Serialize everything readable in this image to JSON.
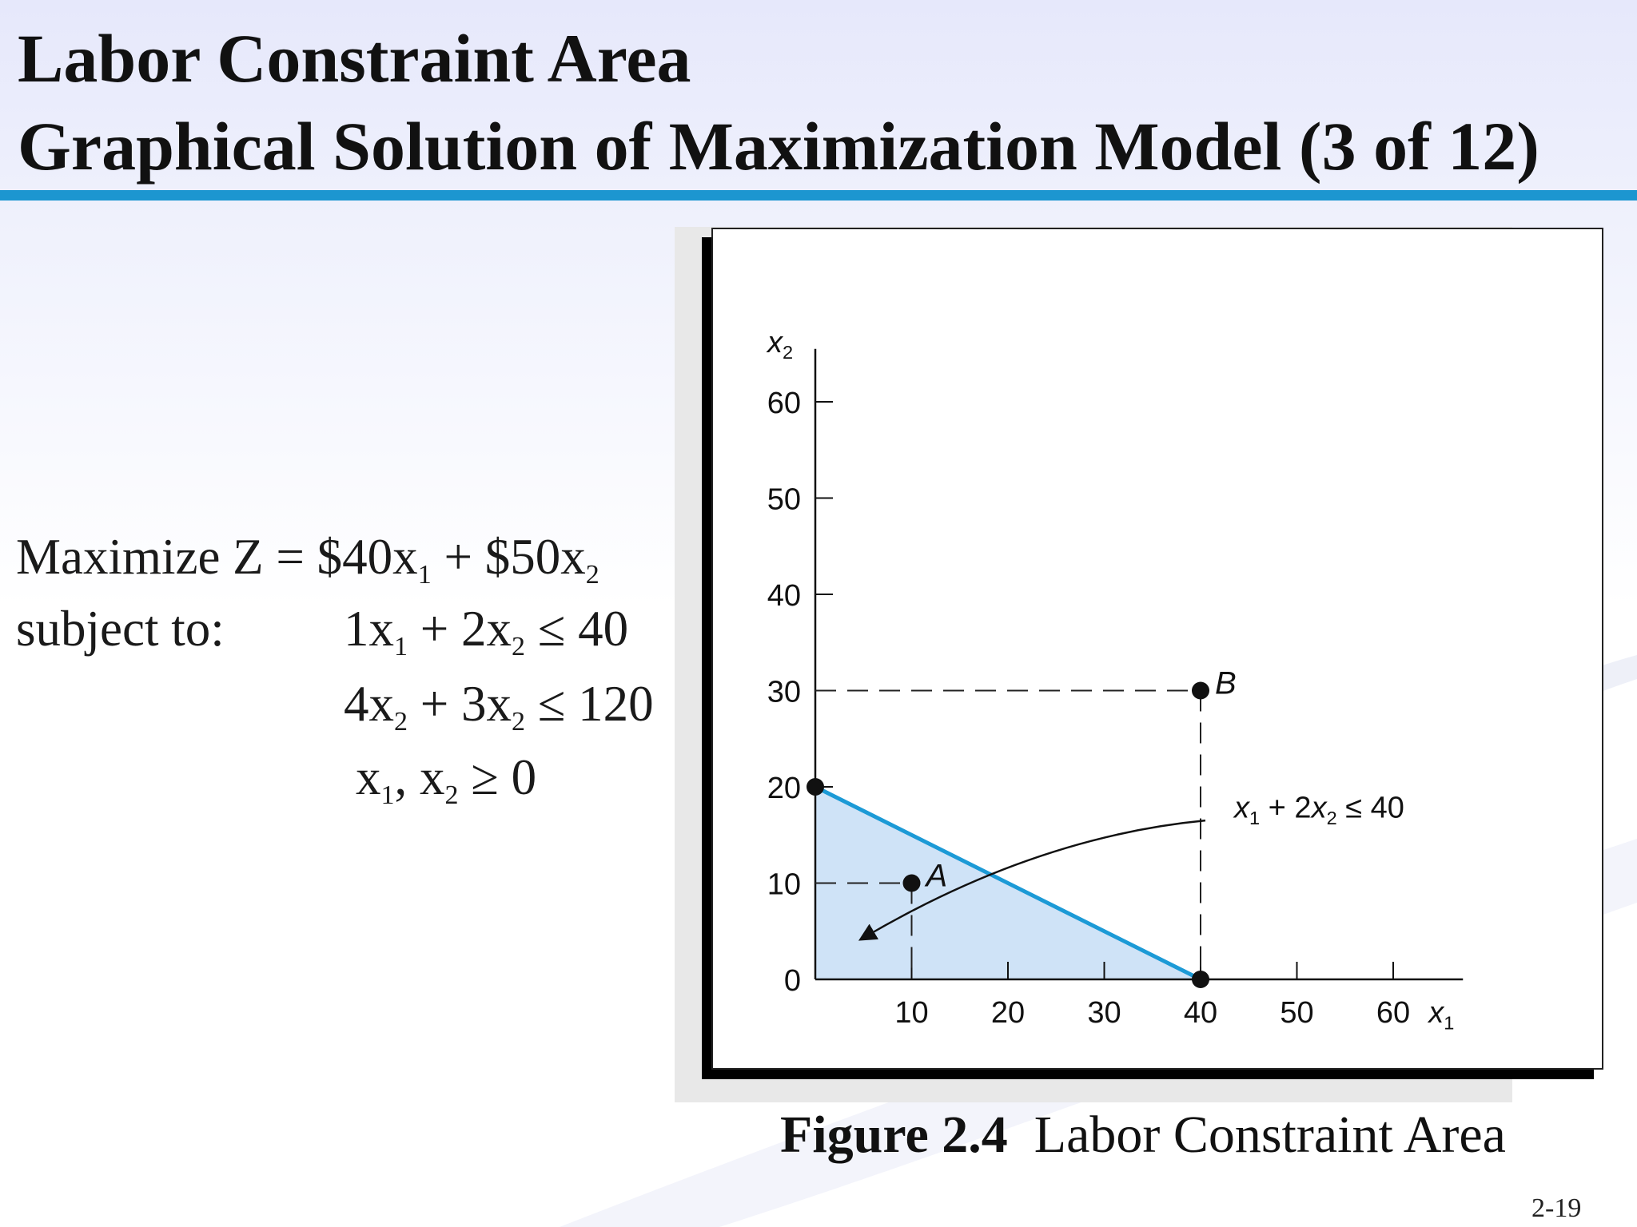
{
  "header": {
    "title_line1": "Labor Constraint Area",
    "title_line2": "Graphical Solution of Maximization Model (3 of 12)",
    "rule_color": "#1c96d0"
  },
  "model": {
    "objective": {
      "prefix": "Maximize Z = $40x",
      "sub1": "1",
      "mid": " + $50x",
      "sub2": "2"
    },
    "subject_label": "subject to:",
    "constraint1": {
      "a": "1x",
      "sub_a": "1",
      "mid": " + 2x",
      "sub_b": "2",
      "rest": " ≤ 40"
    },
    "constraint2": {
      "a": "4x",
      "sub_a": "2",
      "mid": " + 3x",
      "sub_b": "2",
      "rest": " ≤ 120"
    },
    "nonneg": {
      "a": "x",
      "sub_a": "1",
      "mid": ", x",
      "sub_b": "2",
      "rest": " ≥ 0"
    }
  },
  "chart_data": {
    "type": "scatter",
    "title": "",
    "xlabel": "x",
    "xlabel_sub": "1",
    "ylabel": "x",
    "ylabel_sub": "2",
    "xlim": [
      0,
      65
    ],
    "ylim": [
      0,
      65
    ],
    "x_ticks": [
      10,
      20,
      30,
      40,
      50,
      60
    ],
    "y_ticks": [
      0,
      10,
      20,
      30,
      40,
      50,
      60
    ],
    "constraint_line": {
      "from": [
        0,
        20
      ],
      "to": [
        40,
        0
      ],
      "color": "#1c9ad6"
    },
    "feasible_region": {
      "vertices": [
        [
          0,
          0
        ],
        [
          0,
          20
        ],
        [
          40,
          0
        ]
      ],
      "color": "#cfe3f7"
    },
    "points": [
      {
        "label": "A",
        "x": 10,
        "y": 10
      },
      {
        "label": "B",
        "x": 40,
        "y": 30
      },
      {
        "label": "",
        "x": 0,
        "y": 20
      },
      {
        "label": "",
        "x": 40,
        "y": 0
      }
    ],
    "annotation": {
      "text_a": "x",
      "sub_a": "1",
      "text_b": " + 2x",
      "sub_b": "2",
      "text_c": " ≤ 40"
    },
    "grid": false,
    "legend": "none"
  },
  "caption": {
    "bold": "Figure 2.4",
    "text": "Labor Constraint Area"
  },
  "page_number": "2-19"
}
